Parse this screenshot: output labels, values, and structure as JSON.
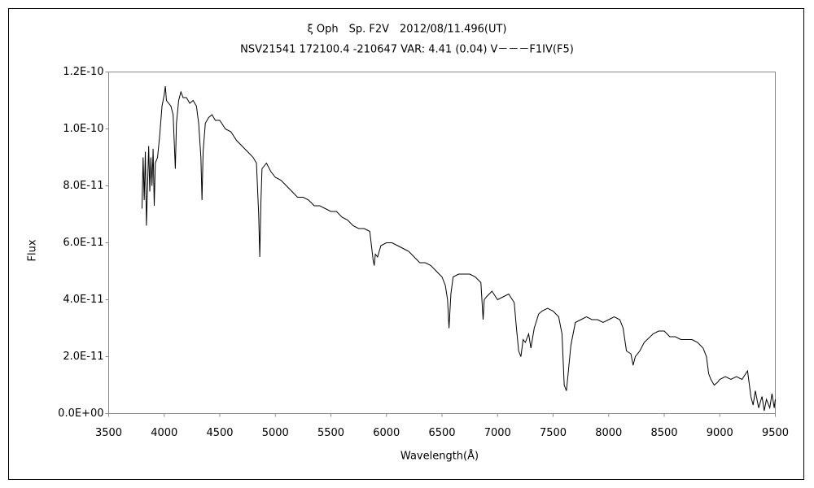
{
  "chart_data": {
    "type": "line",
    "title": "ξ Oph　Sp. F2V　2012/08/11.496(UT)",
    "subtitle": "NSV21541 172100.4 -210647 VAR: 4.41 (0.04) V－－－F1IV(F5)",
    "x_label": "Wavelength(Å)",
    "y_label": "Flux",
    "xlim": [
      3500,
      9500
    ],
    "xticks": [
      3500,
      4000,
      4500,
      5000,
      5500,
      6000,
      6500,
      7000,
      7500,
      8000,
      8500,
      9000,
      9500
    ],
    "ylim": [
      0,
      1.2e-10
    ],
    "yticks": [
      {
        "value": 0,
        "label": "0.0E+00"
      },
      {
        "value": 2e-11,
        "label": "2.0E-11"
      },
      {
        "value": 4e-11,
        "label": "4.0E-11"
      },
      {
        "value": 6e-11,
        "label": "6.0E-11"
      },
      {
        "value": 8e-11,
        "label": "8.0E-11"
      },
      {
        "value": 1e-10,
        "label": "1.0E-10"
      },
      {
        "value": 1.2e-10,
        "label": "1.2E-10"
      }
    ],
    "color": "#000000",
    "x": [
      3800,
      3810,
      3820,
      3830,
      3840,
      3850,
      3860,
      3870,
      3880,
      3890,
      3900,
      3910,
      3920,
      3940,
      3960,
      3980,
      4000,
      4010,
      4020,
      4040,
      4060,
      4080,
      4100,
      4110,
      4130,
      4150,
      4170,
      4200,
      4230,
      4260,
      4290,
      4310,
      4330,
      4340,
      4350,
      4370,
      4400,
      4430,
      4460,
      4500,
      4550,
      4600,
      4650,
      4700,
      4750,
      4800,
      4830,
      4850,
      4860,
      4870,
      4880,
      4920,
      4960,
      5000,
      5050,
      5100,
      5150,
      5200,
      5250,
      5300,
      5350,
      5400,
      5450,
      5500,
      5550,
      5600,
      5650,
      5700,
      5750,
      5800,
      5850,
      5880,
      5890,
      5900,
      5920,
      5950,
      6000,
      6050,
      6100,
      6150,
      6200,
      6250,
      6300,
      6350,
      6400,
      6450,
      6500,
      6530,
      6550,
      6563,
      6580,
      6600,
      6650,
      6700,
      6750,
      6800,
      6850,
      6870,
      6880,
      6900,
      6950,
      7000,
      7050,
      7100,
      7150,
      7170,
      7190,
      7210,
      7230,
      7250,
      7280,
      7300,
      7330,
      7370,
      7400,
      7450,
      7500,
      7550,
      7580,
      7600,
      7620,
      7640,
      7660,
      7700,
      7750,
      7800,
      7850,
      7900,
      7950,
      8000,
      8050,
      8100,
      8130,
      8160,
      8200,
      8220,
      8240,
      8280,
      8320,
      8400,
      8450,
      8500,
      8550,
      8600,
      8650,
      8700,
      8750,
      8800,
      8850,
      8880,
      8900,
      8920,
      8950,
      8980,
      9000,
      9050,
      9100,
      9150,
      9200,
      9250,
      9280,
      9300,
      9320,
      9350,
      9380,
      9400,
      9420,
      9450,
      9470,
      9490,
      9500
    ],
    "values": [
      7.2e-11,
      9e-11,
      7.5e-11,
      9.2e-11,
      6.6e-11,
      8e-11,
      9.4e-11,
      7.8e-11,
      9e-11,
      8e-11,
      9.3e-11,
      7.3e-11,
      8.8e-11,
      9e-11,
      9.8e-11,
      1.08e-10,
      1.12e-10,
      1.15e-10,
      1.1e-10,
      1.09e-10,
      1.08e-10,
      1.05e-10,
      8.6e-11,
      1.02e-10,
      1.1e-10,
      1.13e-10,
      1.11e-10,
      1.11e-10,
      1.09e-10,
      1.1e-10,
      1.08e-10,
      1.02e-10,
      9e-11,
      7.5e-11,
      9.2e-11,
      1.02e-10,
      1.04e-10,
      1.05e-10,
      1.03e-10,
      1.03e-10,
      1e-10,
      9.9e-11,
      9.6e-11,
      9.4e-11,
      9.2e-11,
      9e-11,
      8.8e-11,
      7e-11,
      5.5e-11,
      7.4e-11,
      8.6e-11,
      8.8e-11,
      8.5e-11,
      8.3e-11,
      8.2e-11,
      8e-11,
      7.8e-11,
      7.6e-11,
      7.6e-11,
      7.5e-11,
      7.3e-11,
      7.3e-11,
      7.2e-11,
      7.1e-11,
      7.1e-11,
      6.9e-11,
      6.8e-11,
      6.6e-11,
      6.5e-11,
      6.5e-11,
      6.4e-11,
      5.4e-11,
      5.2e-11,
      5.6e-11,
      5.5e-11,
      5.9e-11,
      6e-11,
      6e-11,
      5.9e-11,
      5.8e-11,
      5.7e-11,
      5.5e-11,
      5.3e-11,
      5.3e-11,
      5.2e-11,
      5e-11,
      4.8e-11,
      4.5e-11,
      4e-11,
      3e-11,
      4.2e-11,
      4.8e-11,
      4.9e-11,
      4.9e-11,
      4.9e-11,
      4.8e-11,
      4.6e-11,
      3.3e-11,
      4e-11,
      4.1e-11,
      4.3e-11,
      4e-11,
      4.1e-11,
      4.2e-11,
      3.9e-11,
      3e-11,
      2.2e-11,
      2e-11,
      2.6e-11,
      2.5e-11,
      2.8e-11,
      2.3e-11,
      3e-11,
      3.5e-11,
      3.6e-11,
      3.7e-11,
      3.6e-11,
      3.4e-11,
      2.8e-11,
      1e-11,
      8e-12,
      1.6e-11,
      2.4e-11,
      3.2e-11,
      3.3e-11,
      3.4e-11,
      3.3e-11,
      3.3e-11,
      3.2e-11,
      3.3e-11,
      3.4e-11,
      3.3e-11,
      3e-11,
      2.2e-11,
      2.1e-11,
      1.7e-11,
      2e-11,
      2.2e-11,
      2.5e-11,
      2.8e-11,
      2.9e-11,
      2.9e-11,
      2.7e-11,
      2.7e-11,
      2.6e-11,
      2.6e-11,
      2.6e-11,
      2.5e-11,
      2.3e-11,
      2e-11,
      1.4e-11,
      1.2e-11,
      1e-11,
      1.1e-11,
      1.2e-11,
      1.3e-11,
      1.2e-11,
      1.3e-11,
      1.2e-11,
      1.5e-11,
      6e-12,
      3e-12,
      8e-12,
      2e-12,
      6e-12,
      1e-12,
      5e-12,
      2e-12,
      7e-12,
      2e-12,
      5e-12
    ]
  }
}
